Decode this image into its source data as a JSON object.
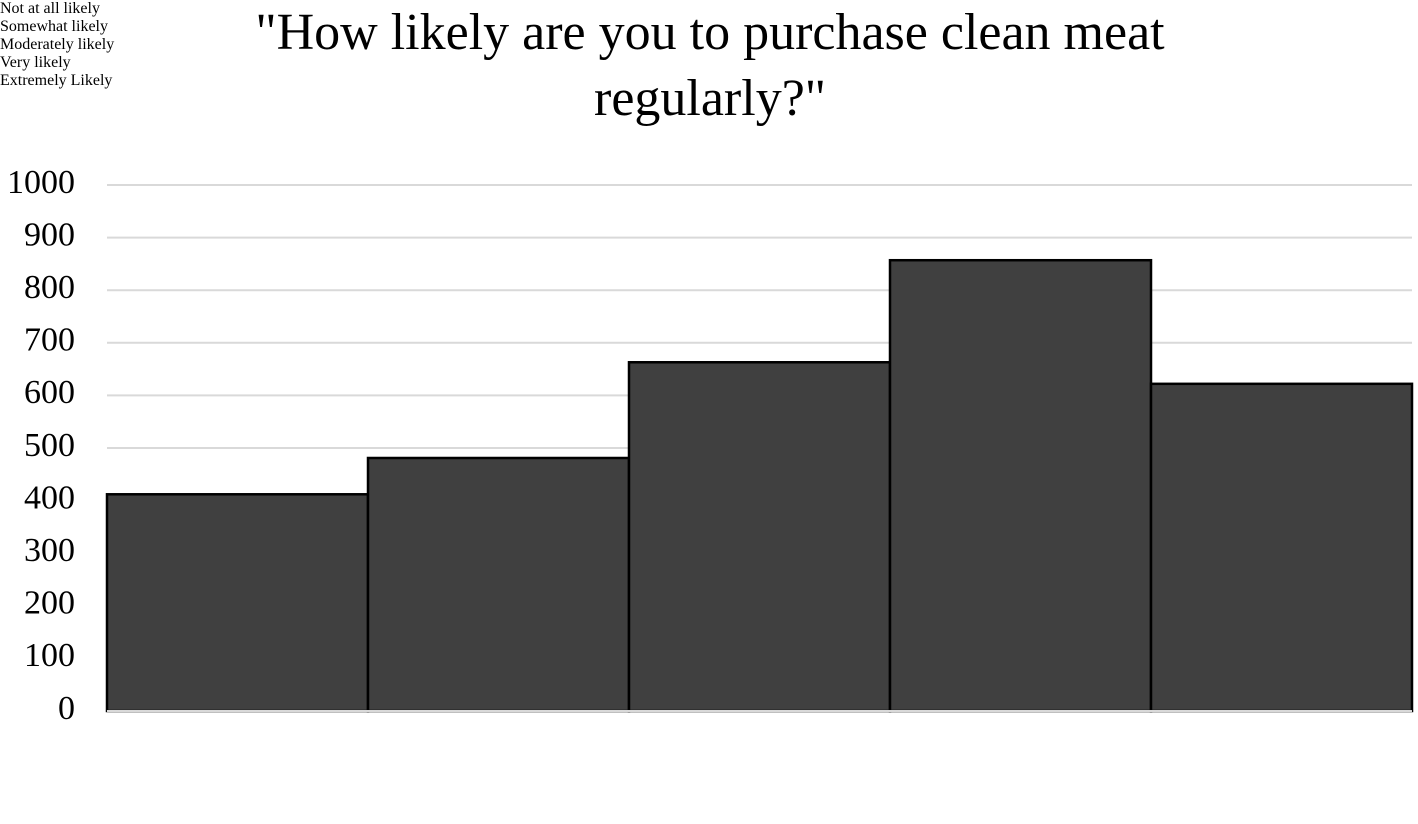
{
  "chart_data": {
    "type": "bar",
    "title": "\"How likely are you to purchase clean meat regularly?\"",
    "categories": [
      "Not at all likely",
      "Somewhat likely",
      "Moderately likely",
      "Very likely",
      "Extremely Likely"
    ],
    "values": [
      412,
      481,
      663,
      857,
      622
    ],
    "color": "#404040",
    "ylim": [
      0,
      1000
    ],
    "yticks": [
      0,
      100,
      200,
      300,
      400,
      500,
      600,
      700,
      800,
      900,
      1000
    ],
    "grid": true
  }
}
